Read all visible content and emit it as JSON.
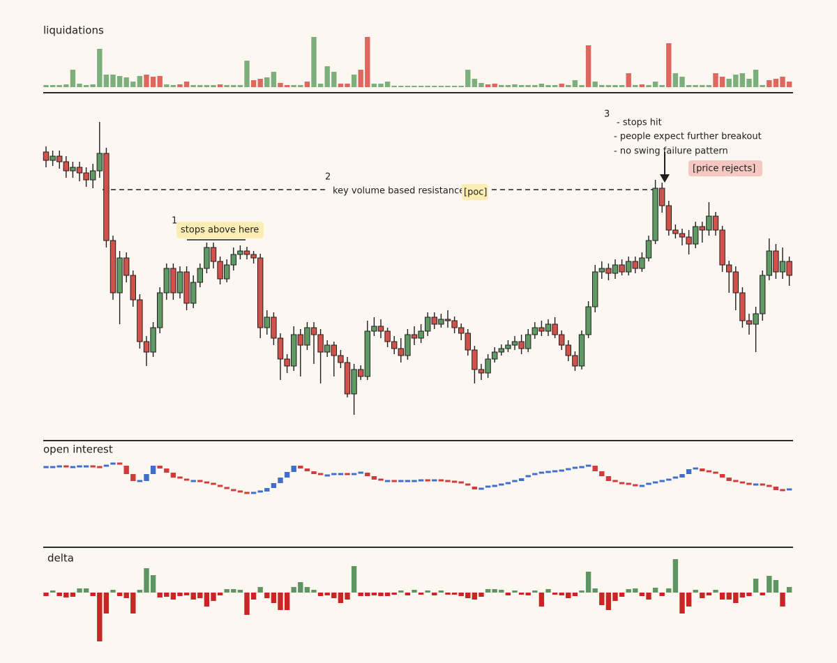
{
  "chart_data": [
    {
      "type": "bar",
      "title": "liquidations",
      "note": "2",
      "ylim": [
        0,
        75
      ],
      "values": [
        3,
        3,
        3,
        4,
        25,
        5,
        3,
        4,
        55,
        18,
        18,
        16,
        14,
        8,
        16,
        18,
        15,
        16,
        4,
        3,
        4,
        8,
        3,
        3,
        3,
        3,
        4,
        3,
        3,
        3,
        38,
        10,
        12,
        14,
        22,
        6,
        3,
        3,
        3,
        8,
        72,
        5,
        30,
        22,
        5,
        5,
        18,
        25,
        72,
        5,
        5,
        8,
        2,
        2,
        2,
        2,
        2,
        2,
        2,
        2,
        2,
        2,
        2,
        25,
        12,
        6,
        4,
        5,
        3,
        3,
        4,
        3,
        3,
        3,
        5,
        3,
        3,
        5,
        3,
        10,
        3,
        60,
        8,
        3,
        3,
        3,
        3,
        20,
        3,
        4,
        3,
        8,
        3,
        63,
        20,
        15,
        3,
        3,
        3,
        3,
        20,
        15,
        12,
        18,
        20,
        12,
        25,
        3,
        10,
        12,
        15,
        8
      ],
      "colors": [
        "#7daf7d",
        "#7daf7d",
        "#7daf7d",
        "#7daf7d",
        "#7daf7d",
        "#7daf7d",
        "#7daf7d",
        "#7daf7d",
        "#7daf7d",
        "#7daf7d",
        "#7daf7d",
        "#7daf7d",
        "#7daf7d",
        "#7daf7d",
        "#7daf7d",
        "#de675e",
        "#de675e",
        "#de675e",
        "#7daf7d",
        "#7daf7d",
        "#de675e",
        "#de675e",
        "#7daf7d",
        "#7daf7d",
        "#7daf7d",
        "#7daf7d",
        "#de675e",
        "#7daf7d",
        "#7daf7d",
        "#7daf7d",
        "#7daf7d",
        "#de675e",
        "#de675e",
        "#7daf7d",
        "#7daf7d",
        "#de675e",
        "#de675e",
        "#7daf7d",
        "#7daf7d",
        "#de675e",
        "#7daf7d",
        "#7daf7d",
        "#7daf7d",
        "#7daf7d",
        "#de675e",
        "#de675e",
        "#7daf7d",
        "#de675e",
        "#de675e",
        "#7daf7d",
        "#7daf7d",
        "#7daf7d",
        "#7daf7d",
        "#7daf7d",
        "#7daf7d",
        "#7daf7d",
        "#7daf7d",
        "#7daf7d",
        "#7daf7d",
        "#7daf7d",
        "#7daf7d",
        "#7daf7d",
        "#7daf7d",
        "#7daf7d",
        "#7daf7d",
        "#7daf7d",
        "#de675e",
        "#de675e",
        "#7daf7d",
        "#7daf7d",
        "#7daf7d",
        "#7daf7d",
        "#7daf7d",
        "#7daf7d",
        "#7daf7d",
        "#7daf7d",
        "#7daf7d",
        "#de675e",
        "#7daf7d",
        "#7daf7d",
        "#7daf7d",
        "#de675e",
        "#7daf7d",
        "#7daf7d",
        "#7daf7d",
        "#7daf7d",
        "#7daf7d",
        "#de675e",
        "#7daf7d",
        "#de675e",
        "#7daf7d",
        "#7daf7d",
        "#7daf7d",
        "#de675e",
        "#7daf7d",
        "#7daf7d",
        "#7daf7d",
        "#7daf7d",
        "#7daf7d",
        "#7daf7d",
        "#de675e",
        "#de675e",
        "#7daf7d",
        "#7daf7d",
        "#7daf7d",
        "#7daf7d",
        "#7daf7d",
        "#7daf7d",
        "#de675e",
        "#de675e",
        "#de675e",
        "#de675e"
      ]
    },
    {
      "type": "candlestick",
      "ylim": [
        0,
        460
      ],
      "up_color": "#5f9a65",
      "down_color": "#d1524a",
      "resistance_level": 328,
      "stops_level": 256,
      "notes": {
        "one": "1",
        "stops": "stops above here",
        "two": "2",
        "resistance": "key volume based resistance",
        "poc": "[poc]",
        "three": "3",
        "bullets": [
          "- stops hit",
          "- people expect further breakout",
          "- no swing failure pattern"
        ],
        "rejects": "[price rejects]"
      },
      "ohlc": [
        [
          382,
          390,
          360,
          370
        ],
        [
          370,
          384,
          362,
          376
        ],
        [
          376,
          384,
          358,
          368
        ],
        [
          368,
          376,
          345,
          355
        ],
        [
          355,
          368,
          345,
          360
        ],
        [
          360,
          368,
          340,
          352
        ],
        [
          352,
          360,
          332,
          342
        ],
        [
          342,
          365,
          330,
          355
        ],
        [
          355,
          425,
          345,
          380
        ],
        [
          380,
          388,
          245,
          255
        ],
        [
          255,
          262,
          170,
          180
        ],
        [
          180,
          240,
          135,
          230
        ],
        [
          230,
          238,
          195,
          205
        ],
        [
          205,
          212,
          160,
          170
        ],
        [
          170,
          178,
          100,
          110
        ],
        [
          110,
          118,
          75,
          95
        ],
        [
          95,
          138,
          88,
          130
        ],
        [
          130,
          188,
          122,
          180
        ],
        [
          180,
          222,
          170,
          215
        ],
        [
          215,
          222,
          170,
          180
        ],
        [
          180,
          218,
          172,
          210
        ],
        [
          210,
          218,
          155,
          165
        ],
        [
          165,
          205,
          158,
          195
        ],
        [
          195,
          222,
          188,
          215
        ],
        [
          215,
          252,
          208,
          245
        ],
        [
          245,
          252,
          215,
          225
        ],
        [
          225,
          232,
          192,
          200
        ],
        [
          200,
          228,
          195,
          220
        ],
        [
          220,
          245,
          212,
          235
        ],
        [
          235,
          248,
          228,
          240
        ],
        [
          240,
          246,
          228,
          235
        ],
        [
          235,
          240,
          222,
          230
        ],
        [
          230,
          236,
          115,
          130
        ],
        [
          130,
          155,
          120,
          145
        ],
        [
          145,
          152,
          105,
          115
        ],
        [
          115,
          122,
          55,
          85
        ],
        [
          85,
          92,
          65,
          75
        ],
        [
          75,
          132,
          68,
          120
        ],
        [
          120,
          128,
          60,
          105
        ],
        [
          105,
          138,
          98,
          130
        ],
        [
          130,
          138,
          78,
          120
        ],
        [
          120,
          128,
          50,
          95
        ],
        [
          95,
          112,
          88,
          105
        ],
        [
          105,
          110,
          60,
          90
        ],
        [
          90,
          98,
          72,
          80
        ],
        [
          80,
          88,
          30,
          35
        ],
        [
          35,
          78,
          5,
          70
        ],
        [
          70,
          76,
          55,
          60
        ],
        [
          60,
          140,
          55,
          125
        ],
        [
          125,
          145,
          118,
          132
        ],
        [
          132,
          142,
          115,
          125
        ],
        [
          125,
          130,
          102,
          110
        ],
        [
          110,
          118,
          92,
          100
        ],
        [
          100,
          115,
          80,
          90
        ],
        [
          90,
          128,
          84,
          120
        ],
        [
          120,
          132,
          105,
          115
        ],
        [
          115,
          135,
          108,
          125
        ],
        [
          125,
          152,
          118,
          145
        ],
        [
          145,
          152,
          128,
          135
        ],
        [
          135,
          150,
          130,
          142
        ],
        [
          142,
          155,
          130,
          140
        ],
        [
          140,
          146,
          122,
          130
        ],
        [
          130,
          136,
          112,
          122
        ],
        [
          122,
          128,
          90,
          98
        ],
        [
          98,
          104,
          50,
          70
        ],
        [
          70,
          78,
          55,
          65
        ],
        [
          65,
          92,
          58,
          85
        ],
        [
          85,
          102,
          80,
          95
        ],
        [
          95,
          106,
          90,
          100
        ],
        [
          100,
          112,
          95,
          105
        ],
        [
          105,
          118,
          98,
          110
        ],
        [
          110,
          120,
          92,
          100
        ],
        [
          100,
          128,
          95,
          120
        ],
        [
          120,
          138,
          114,
          130
        ],
        [
          130,
          140,
          118,
          125
        ],
        [
          125,
          142,
          118,
          135
        ],
        [
          135,
          145,
          115,
          120
        ],
        [
          120,
          126,
          98,
          105
        ],
        [
          105,
          112,
          82,
          90
        ],
        [
          90,
          96,
          68,
          75
        ],
        [
          75,
          126,
          70,
          120
        ],
        [
          120,
          168,
          115,
          160
        ],
        [
          160,
          220,
          152,
          210
        ],
        [
          210,
          225,
          200,
          215
        ],
        [
          215,
          222,
          198,
          208
        ],
        [
          208,
          228,
          200,
          220
        ],
        [
          220,
          228,
          205,
          210
        ],
        [
          210,
          232,
          205,
          225
        ],
        [
          225,
          232,
          208,
          215
        ],
        [
          215,
          238,
          210,
          230
        ],
        [
          230,
          262,
          225,
          255
        ],
        [
          255,
          342,
          250,
          330
        ],
        [
          330,
          338,
          295,
          305
        ],
        [
          305,
          312,
          262,
          270
        ],
        [
          270,
          278,
          258,
          265
        ],
        [
          265,
          272,
          248,
          260
        ],
        [
          260,
          270,
          235,
          250
        ],
        [
          250,
          282,
          244,
          275
        ],
        [
          275,
          282,
          252,
          270
        ],
        [
          270,
          310,
          262,
          290
        ],
        [
          290,
          296,
          262,
          270
        ],
        [
          270,
          276,
          210,
          220
        ],
        [
          220,
          226,
          180,
          210
        ],
        [
          210,
          218,
          155,
          180
        ],
        [
          180,
          188,
          130,
          140
        ],
        [
          140,
          150,
          120,
          135
        ],
        [
          135,
          160,
          95,
          150
        ],
        [
          150,
          212,
          140,
          205
        ],
        [
          205,
          258,
          198,
          240
        ],
        [
          240,
          250,
          200,
          210
        ],
        [
          210,
          245,
          200,
          225
        ],
        [
          225,
          232,
          190,
          205
        ]
      ]
    },
    {
      "type": "ticks",
      "title": "open interest",
      "ylim": [
        0,
        60
      ],
      "up_color": "#3f6fca",
      "down_color": "#d23b3b",
      "values": [
        50,
        50,
        51,
        50,
        50,
        51,
        51,
        50,
        49,
        52,
        55,
        52,
        40,
        30,
        30,
        40,
        52,
        48,
        42,
        35,
        32,
        30,
        30,
        28,
        26,
        23,
        20,
        17,
        15,
        13,
        12,
        13,
        15,
        20,
        27,
        35,
        43,
        52,
        48,
        44,
        40,
        38,
        38,
        40,
        40,
        39,
        40,
        42,
        37,
        32,
        30,
        30,
        29,
        30,
        30,
        30,
        31,
        30,
        31,
        30,
        29,
        28,
        25,
        22,
        18,
        19,
        22,
        23,
        25,
        27,
        30,
        34,
        37,
        40,
        42,
        43,
        44,
        45,
        47,
        49,
        50,
        52,
        44,
        37,
        30,
        27,
        26,
        24,
        22,
        23,
        26,
        28,
        30,
        32,
        35,
        40,
        47,
        48,
        44,
        42,
        40,
        35,
        30,
        28,
        26,
        25,
        25,
        23,
        22,
        17,
        16,
        18
      ]
    },
    {
      "type": "bar",
      "title": "delta",
      "ylim": [
        -75,
        75
      ],
      "up_color": "#5f9463",
      "down_color": "#cc2424",
      "values": [
        -5,
        3,
        -5,
        -7,
        -6,
        6,
        6,
        -5,
        -70,
        -30,
        4,
        -5,
        -8,
        -30,
        4,
        35,
        25,
        -7,
        -6,
        -10,
        -5,
        -4,
        -10,
        -8,
        -20,
        -12,
        -4,
        5,
        5,
        4,
        -32,
        -10,
        8,
        -8,
        -15,
        -25,
        -25,
        8,
        15,
        8,
        4,
        -5,
        -4,
        -8,
        -15,
        -10,
        38,
        -5,
        -5,
        -4,
        -5,
        -5,
        -3,
        3,
        -4,
        4,
        -3,
        3,
        -4,
        3,
        -3,
        -3,
        -5,
        -8,
        -10,
        -6,
        5,
        5,
        4,
        -4,
        3,
        -3,
        -4,
        3,
        -20,
        5,
        -3,
        -4,
        -8,
        -5,
        3,
        30,
        6,
        -18,
        -25,
        -12,
        -6,
        5,
        6,
        -5,
        -10,
        7,
        -5,
        6,
        48,
        -30,
        -20,
        4,
        -8,
        -4,
        4,
        -10,
        -10,
        -15,
        -7,
        -5,
        20,
        -4,
        24,
        18,
        -20,
        8
      ]
    }
  ]
}
